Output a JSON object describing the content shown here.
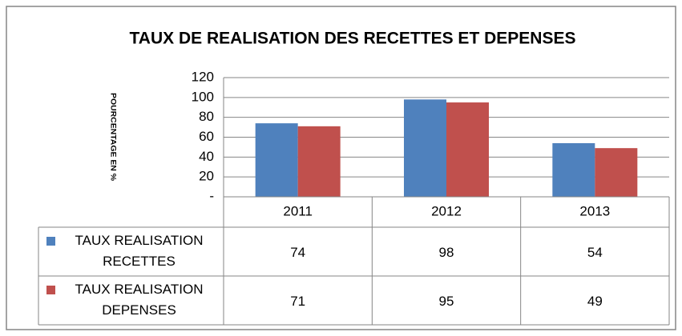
{
  "chart_data": {
    "type": "bar",
    "title": "TAUX DE REALISATION DES RECETTES ET DEPENSES",
    "y_label": "POURCENTAGE EN %",
    "categories": [
      "2011",
      "2012",
      "2013"
    ],
    "series": [
      {
        "name": "TAUX REALISATION RECETTES",
        "color": "#4f81bd",
        "values": [
          74,
          98,
          54
        ]
      },
      {
        "name": "TAUX REALISATION DEPENSES",
        "color": "#c0504d",
        "values": [
          71,
          95,
          49
        ]
      }
    ],
    "ylim": [
      0,
      120
    ],
    "yticks": [
      {
        "value": 0,
        "label": "-"
      },
      20,
      40,
      60,
      80,
      100,
      120
    ],
    "grid": true,
    "data_table": true
  }
}
